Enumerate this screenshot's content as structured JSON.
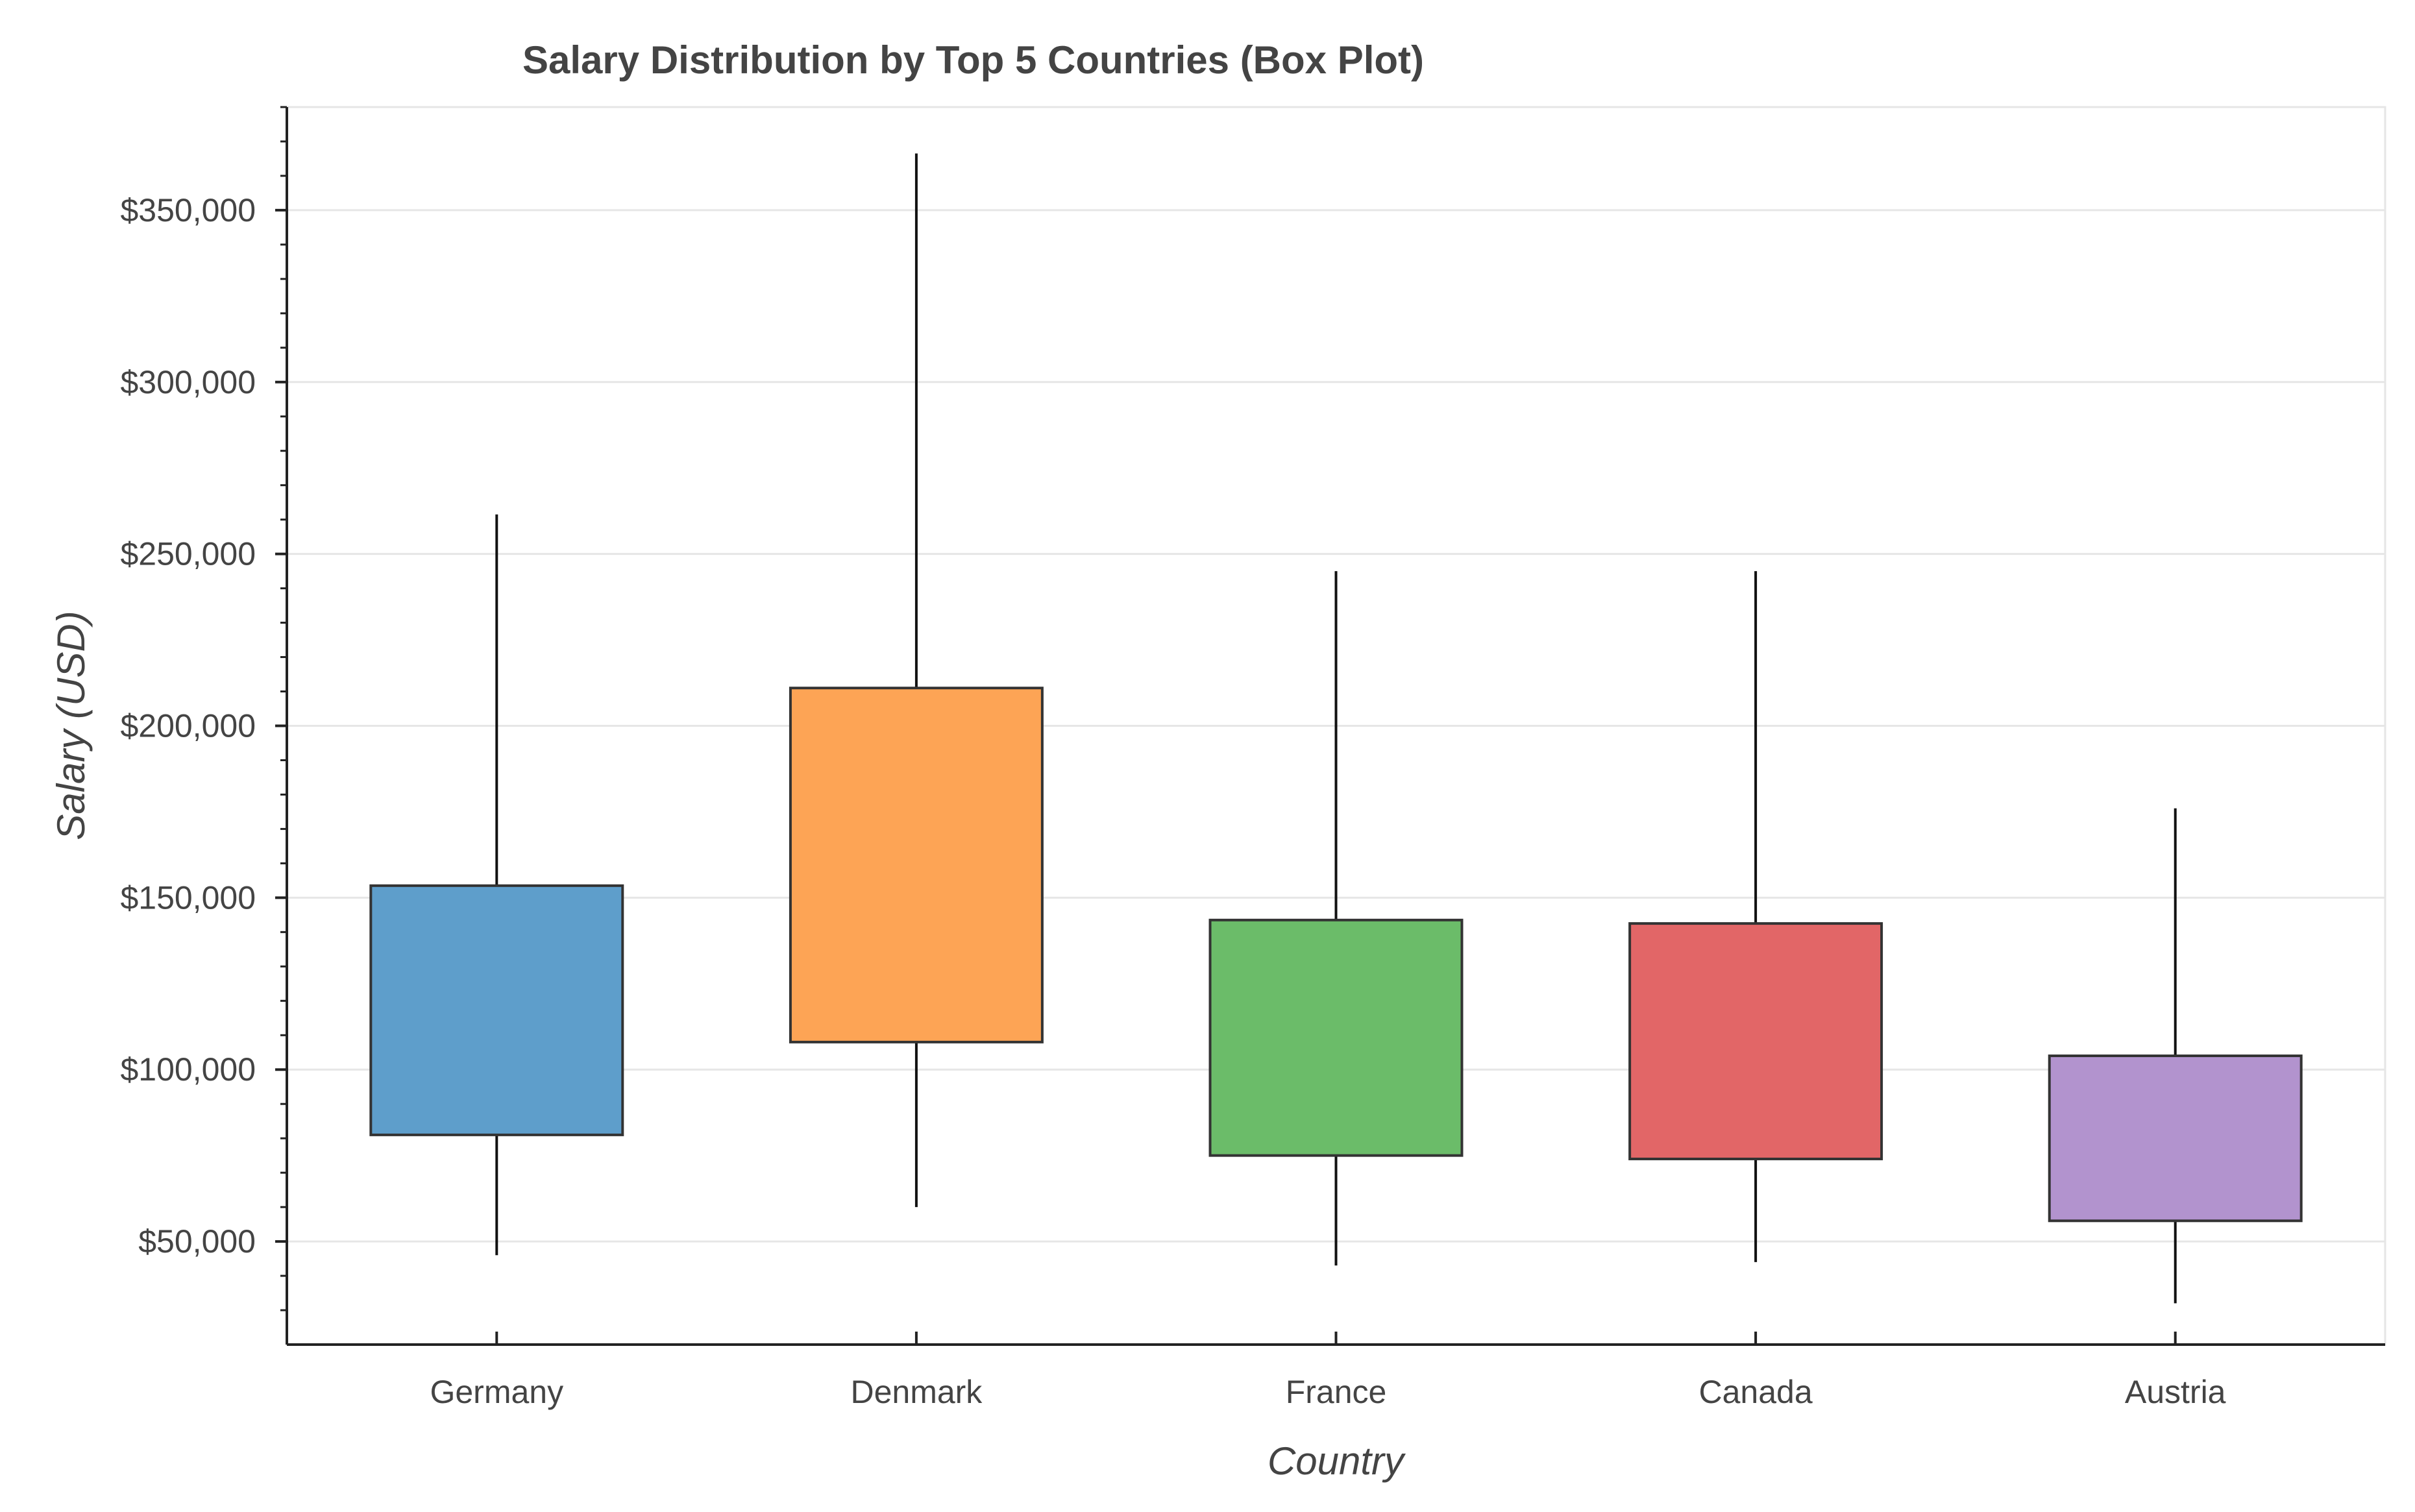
{
  "chart_data": {
    "type": "box",
    "title": "Salary Distribution by Top 5 Countries (Box Plot)",
    "xlabel": "Country",
    "ylabel": "Salary (USD)",
    "ylim": [
      20000,
      380000
    ],
    "y_ticks": [
      50000,
      100000,
      150000,
      200000,
      250000,
      300000,
      350000
    ],
    "y_tick_labels": [
      "$50,000",
      "$100,000",
      "$150,000",
      "$200,000",
      "$250,000",
      "$300,000",
      "$350,000"
    ],
    "grid": true,
    "categories": [
      "Germany",
      "Denmark",
      "France",
      "Canada",
      "Austria"
    ],
    "series": [
      {
        "category": "Germany",
        "lower_whisker": 46000,
        "q1": 81000,
        "q3": 153500,
        "upper_whisker": 261500,
        "color": "#5e9ecb"
      },
      {
        "category": "Denmark",
        "lower_whisker": 60000,
        "q1": 108000,
        "q3": 211000,
        "upper_whisker": 366500,
        "color": "#fda455"
      },
      {
        "category": "France",
        "lower_whisker": 43000,
        "q1": 75000,
        "q3": 143500,
        "upper_whisker": 245000,
        "color": "#6bbc69"
      },
      {
        "category": "Canada",
        "lower_whisker": 44000,
        "q1": 74000,
        "q3": 142500,
        "upper_whisker": 245000,
        "color": "#e26667"
      },
      {
        "category": "Austria",
        "lower_whisker": 32000,
        "q1": 56000,
        "q3": 104000,
        "upper_whisker": 176000,
        "color": "#b293ce"
      }
    ]
  }
}
